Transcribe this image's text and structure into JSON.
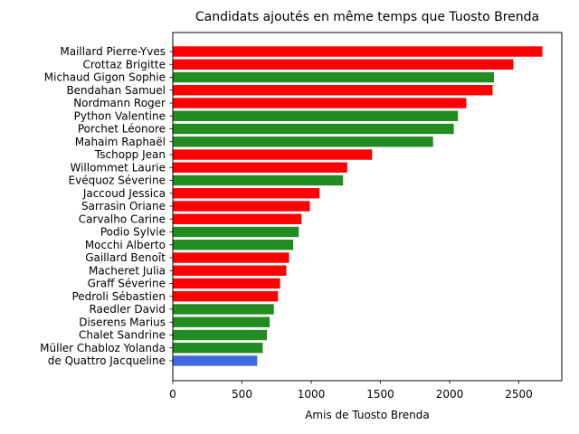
{
  "chart_data": {
    "type": "bar",
    "orientation": "horizontal",
    "title": "Candidats ajoutés en même temps que Tuosto Brenda",
    "xlabel": "Amis de Tuosto Brenda",
    "ylabel": "",
    "xlim": [
      0,
      2810
    ],
    "xticks": [
      0,
      500,
      1000,
      1500,
      2000,
      2500
    ],
    "grid": false,
    "categories": [
      "Maillard Pierre-Yves",
      "Crottaz Brigitte",
      "Michaud Gigon Sophie",
      "Bendahan Samuel",
      "Nordmann Roger",
      "Python Valentine",
      "Porchet Léonore",
      "Mahaim Raphaël",
      "Tschopp Jean",
      "Willommet Laurie",
      "Evéquoz Séverine",
      "Jaccoud Jessica",
      "Sarrasin Oriane",
      "Carvalho Carine",
      "Podio Sylvie",
      "Mocchi Alberto",
      "Gaillard Benoît",
      "Macheret Julia",
      "Graff Séverine",
      "Pedroli Sébastien",
      "Raedler David",
      "Diserens Marius",
      "Chalet Sandrine",
      "Müller Chabloz Yolanda",
      "de Quattro Jacqueline"
    ],
    "values": [
      2670,
      2460,
      2320,
      2310,
      2120,
      2060,
      2030,
      1880,
      1440,
      1260,
      1230,
      1060,
      990,
      930,
      910,
      870,
      840,
      820,
      775,
      760,
      730,
      700,
      680,
      650,
      610
    ],
    "colors": [
      "#ff0000",
      "#ff0000",
      "#228b22",
      "#ff0000",
      "#ff0000",
      "#228b22",
      "#228b22",
      "#228b22",
      "#ff0000",
      "#ff0000",
      "#228b22",
      "#ff0000",
      "#ff0000",
      "#ff0000",
      "#228b22",
      "#228b22",
      "#ff0000",
      "#ff0000",
      "#ff0000",
      "#ff0000",
      "#228b22",
      "#228b22",
      "#228b22",
      "#228b22",
      "#4169e1"
    ]
  }
}
